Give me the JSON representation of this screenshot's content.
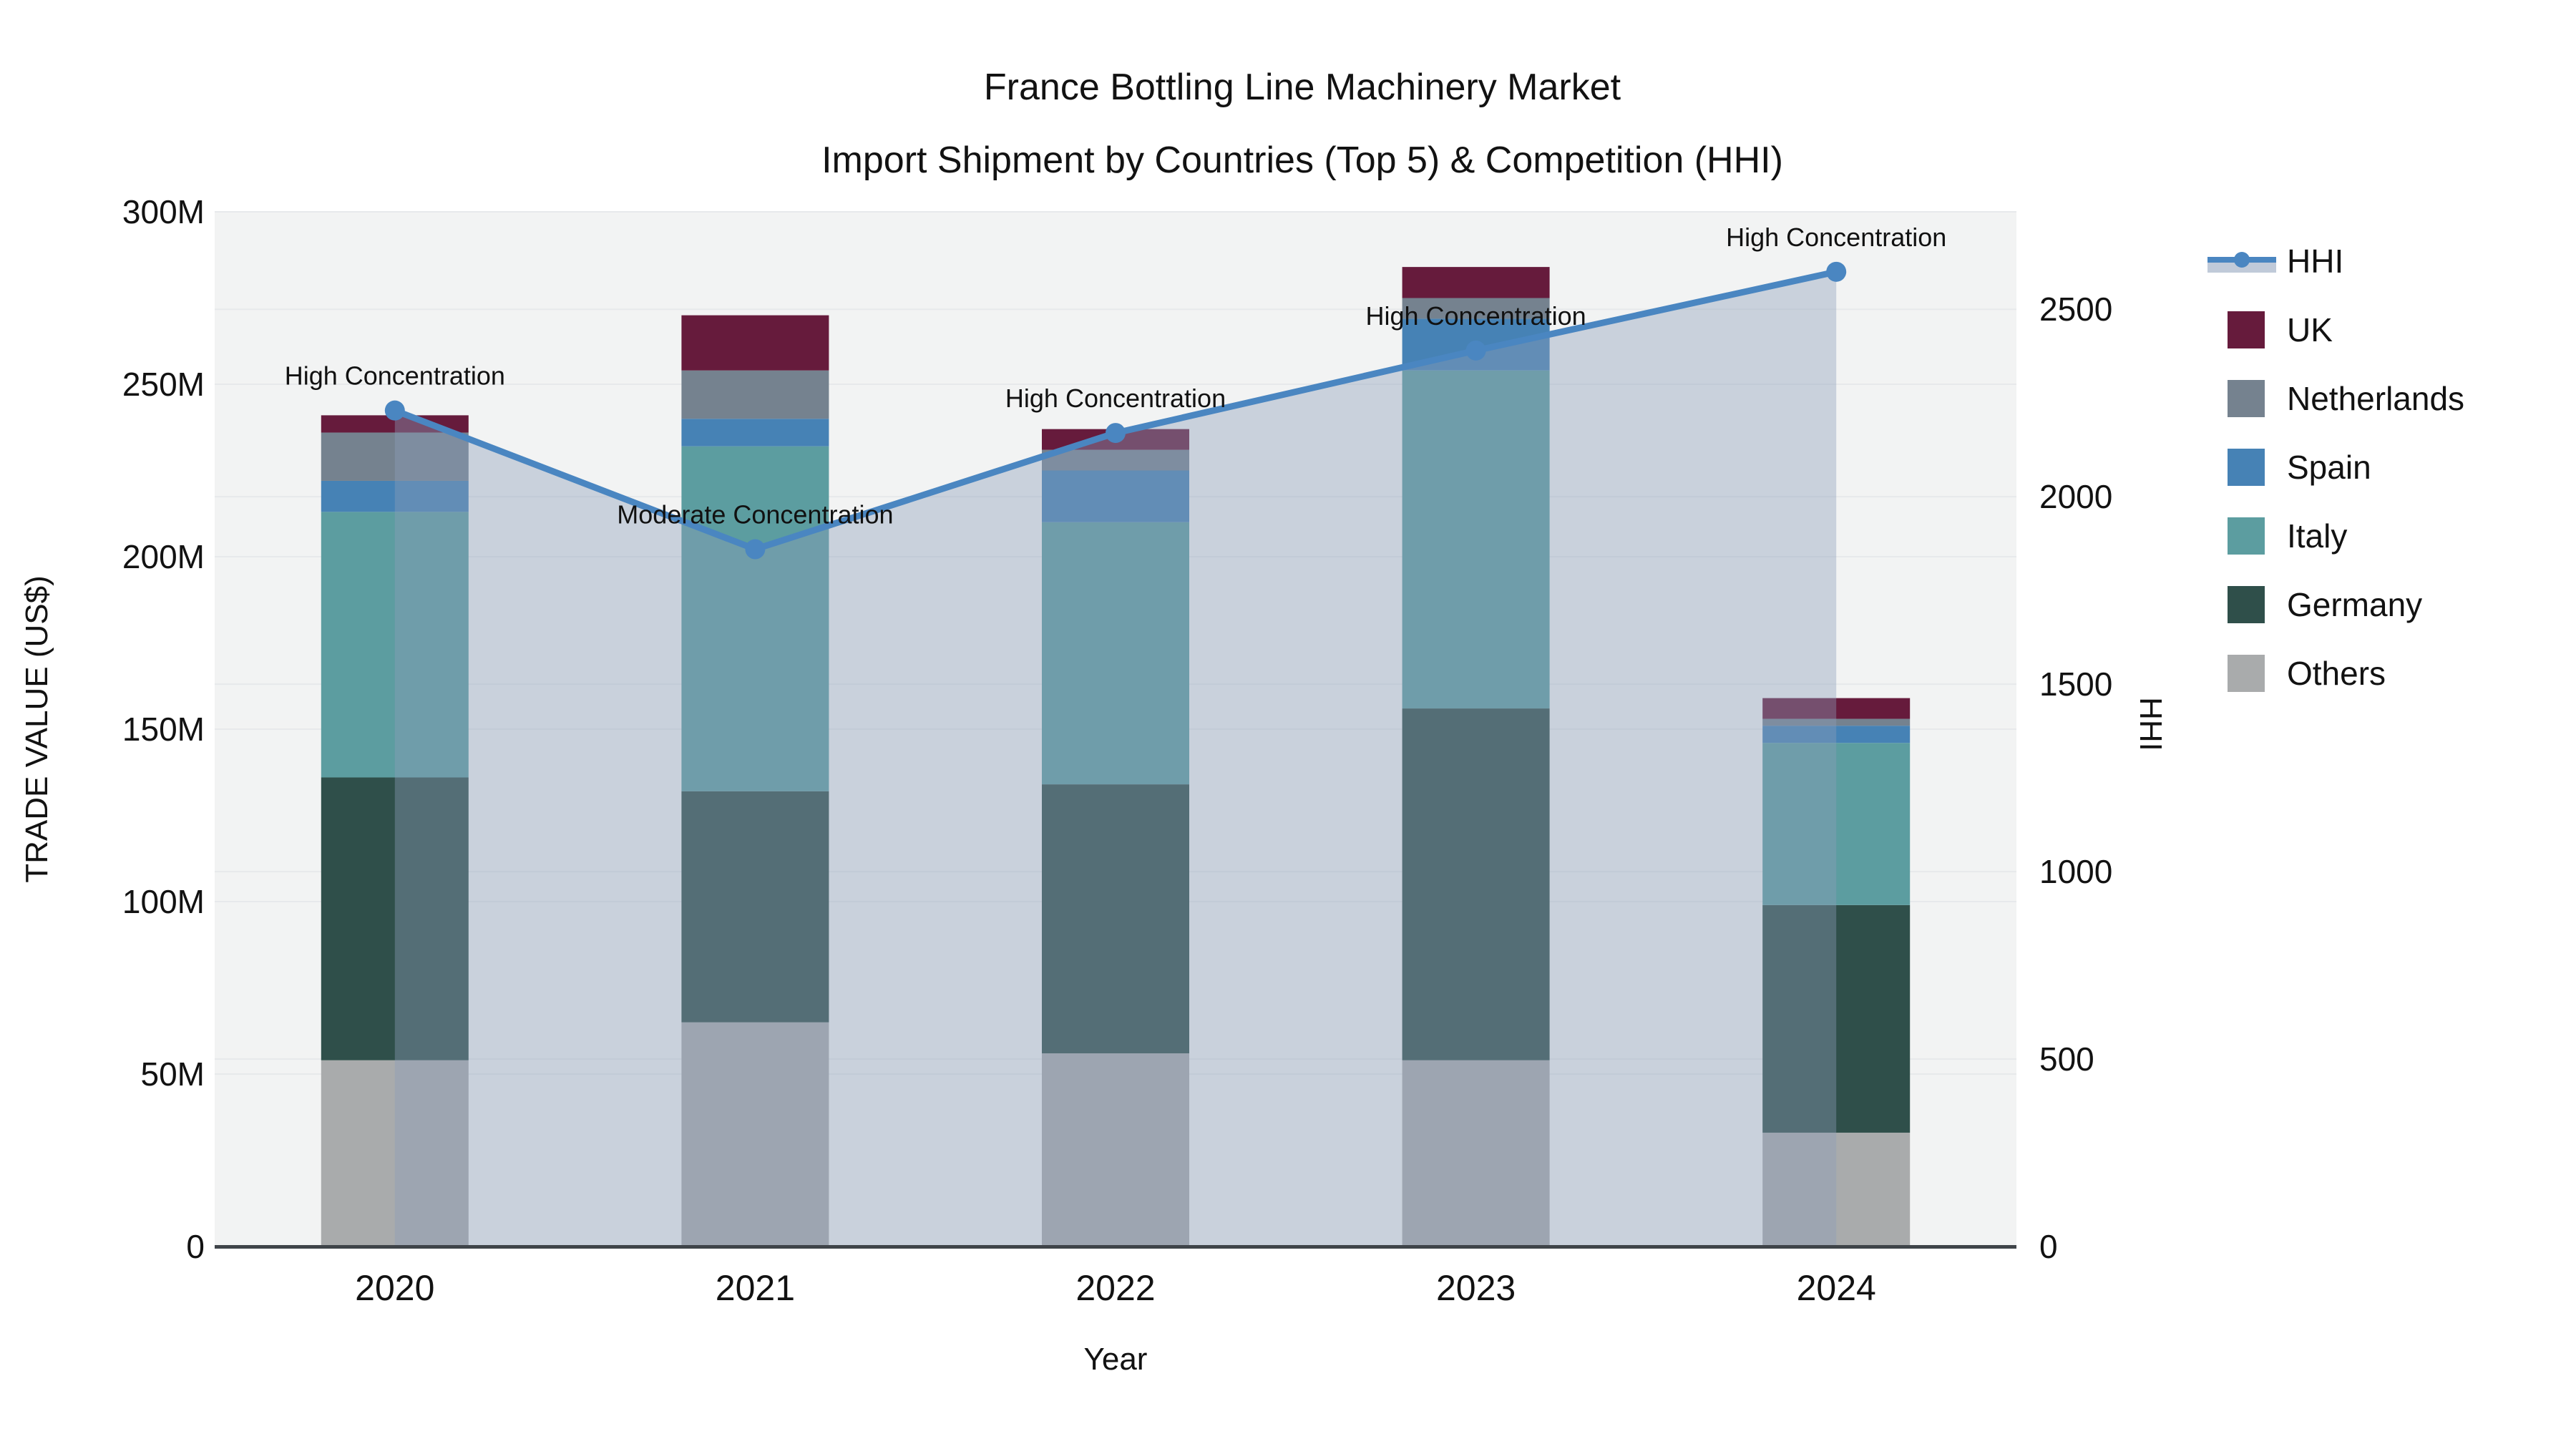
{
  "title": "France Bottling Line Machinery Market",
  "subtitle": "Import Shipment by Countries (Top 5) & Competition (HHI)",
  "axes": {
    "x_title": "Year",
    "y_left_title": "TRADE VALUE (US$)",
    "y_right_title": "HHI",
    "y_left_tick_labels": [
      "0",
      "50M",
      "100M",
      "150M",
      "200M",
      "250M",
      "300M"
    ],
    "y_left_tick_values": [
      0,
      50,
      100,
      150,
      200,
      250,
      300
    ],
    "y_left_max": 300,
    "y_right_tick_labels": [
      "0",
      "500",
      "1000",
      "1500",
      "2000",
      "2500"
    ],
    "y_right_tick_values": [
      0,
      500,
      1000,
      1500,
      2000,
      2500
    ],
    "y_right_max": 2760,
    "grid": true
  },
  "chart_data": {
    "type": "bar+line",
    "categories": [
      "2020",
      "2021",
      "2022",
      "2023",
      "2024"
    ],
    "bar_unit": "M US$",
    "series": [
      {
        "name": "UK",
        "color": "#661b3c",
        "values": [
          5,
          16,
          6,
          9,
          6
        ]
      },
      {
        "name": "Netherlands",
        "color": "#75828f",
        "values": [
          14,
          14,
          6,
          6,
          2
        ]
      },
      {
        "name": "Spain",
        "color": "#4682b5",
        "values": [
          9,
          8,
          15,
          15,
          5
        ]
      },
      {
        "name": "Italy",
        "color": "#5c9da0",
        "values": [
          77,
          100,
          76,
          98,
          47
        ]
      },
      {
        "name": "Germany",
        "color": "#2f4f4a",
        "values": [
          82,
          67,
          78,
          102,
          66
        ]
      },
      {
        "name": "Others",
        "color": "#a9abac",
        "values": [
          54,
          65,
          56,
          54,
          33
        ]
      }
    ],
    "bar_totals": [
      241,
      270,
      237,
      284,
      159
    ],
    "line": {
      "name": "HHI",
      "color": "#4a86c1",
      "fill_color": "rgba(140,158,185,0.4)",
      "values": [
        2230,
        1860,
        2170,
        2390,
        2600
      ]
    },
    "annotations": [
      "High Concentration",
      "Moderate Concentration",
      "High Concentration",
      "High Concentration",
      "High Concentration"
    ],
    "legend_position": "right",
    "plot_bg": "#f2f3f3",
    "grid_color": "#e7e9eb",
    "axis_line_color": "#3f4449"
  },
  "legend": {
    "items": [
      {
        "label": "HHI",
        "color": "#4a86c1",
        "type": "line"
      },
      {
        "label": "UK",
        "color": "#661b3c",
        "type": "swatch"
      },
      {
        "label": "Netherlands",
        "color": "#75828f",
        "type": "swatch"
      },
      {
        "label": "Spain",
        "color": "#4682b5",
        "type": "swatch"
      },
      {
        "label": "Italy",
        "color": "#5c9da0",
        "type": "swatch"
      },
      {
        "label": "Germany",
        "color": "#2f4f4a",
        "type": "swatch"
      },
      {
        "label": "Others",
        "color": "#a9abac",
        "type": "swatch"
      }
    ]
  }
}
